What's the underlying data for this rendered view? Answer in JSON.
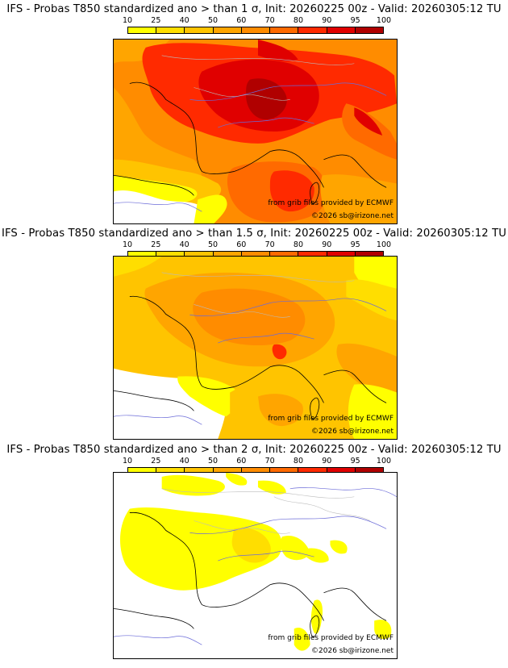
{
  "colorbar": {
    "ticks": [
      "10",
      "25",
      "40",
      "50",
      "60",
      "70",
      "80",
      "90",
      "95",
      "100"
    ],
    "colors": [
      "#ffff00",
      "#ffde00",
      "#ffc400",
      "#ffa500",
      "#ff8c00",
      "#ff6a00",
      "#ff2a00",
      "#e00000",
      "#b00000"
    ]
  },
  "panels": [
    {
      "title": "IFS - Probas T850  standardized ano > than 1 σ, Init: 20260225 00z - Valid: 20260305:12 TU",
      "credit_source": "from grib files provided by ECMWF",
      "credit_copyright": "©2026 sb@irizone.net"
    },
    {
      "title": "IFS - Probas T850  standardized ano > than 1.5 σ, Init: 20260225 00z - Valid: 20260305:12 TU",
      "credit_source": "from grib files provided by ECMWF",
      "credit_copyright": "©2026 sb@irizone.net"
    },
    {
      "title": "IFS - Probas T850  standardized ano > than 2 σ, Init: 20260225 00z - Valid: 20260305:12 TU",
      "credit_source": "from grib files provided by ECMWF",
      "credit_copyright": "©2026 sb@irizone.net"
    }
  ]
}
